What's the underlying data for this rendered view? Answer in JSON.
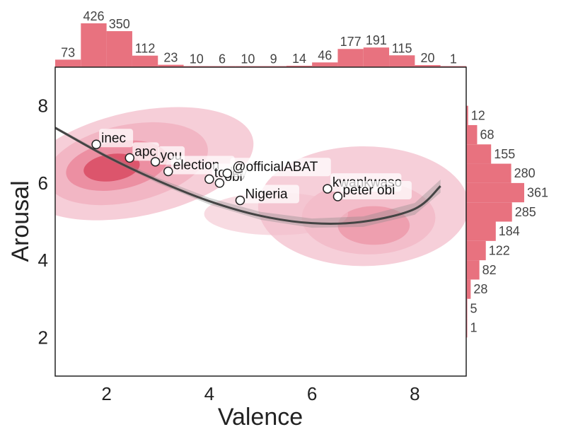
{
  "chart_data": {
    "type": "scatter",
    "xlabel": "Valence",
    "ylabel": "Arousal",
    "xlim": [
      1,
      9
    ],
    "ylim": [
      1,
      9
    ],
    "xticks": [
      "2",
      "4",
      "6",
      "8"
    ],
    "yticks": [
      "2",
      "4",
      "6",
      "8"
    ],
    "points": [
      {
        "label": "inec",
        "x": 1.8,
        "y": 7.0
      },
      {
        "label": "apc",
        "x": 2.45,
        "y": 6.65
      },
      {
        "label": "you",
        "x": 2.95,
        "y": 6.55
      },
      {
        "label": "election",
        "x": 3.2,
        "y": 6.3
      },
      {
        "label": "today",
        "x": 4.0,
        "y": 6.1
      },
      {
        "label": "obi",
        "x": 4.2,
        "y": 6.0
      },
      {
        "label": "@officialABAT",
        "x": 4.35,
        "y": 6.25
      },
      {
        "label": "Nigeria",
        "x": 4.6,
        "y": 5.55
      },
      {
        "label": "kwankwaso",
        "x": 6.3,
        "y": 5.85
      },
      {
        "label": "peter obi",
        "x": 6.5,
        "y": 5.65
      }
    ],
    "trend": [
      {
        "x": 1.0,
        "y": 7.43
      },
      {
        "x": 2.0,
        "y": 6.69
      },
      {
        "x": 3.0,
        "y": 6.06
      },
      {
        "x": 4.0,
        "y": 5.53
      },
      {
        "x": 5.0,
        "y": 5.15
      },
      {
        "x": 6.0,
        "y": 4.96
      },
      {
        "x": 7.0,
        "y": 5.0
      },
      {
        "x": 8.0,
        "y": 5.33
      },
      {
        "x": 8.5,
        "y": 5.92
      }
    ],
    "valence_histogram": {
      "bin_start": 1.0,
      "bin_width": 0.5,
      "counts": [
        73,
        426,
        350,
        112,
        23,
        10,
        6,
        10,
        9,
        14,
        46,
        177,
        191,
        115,
        20,
        1
      ]
    },
    "arousal_histogram": {
      "bin_start": 2.0,
      "bin_width": 0.5,
      "counts": [
        1,
        5,
        28,
        82,
        122,
        184,
        285,
        361,
        280,
        155,
        68,
        12
      ]
    },
    "colors": {
      "hist": "#e8727f",
      "kde_light": "#f3bdcb",
      "kde_dark": "#d63c55",
      "trend": "#444444",
      "axis": "#222222"
    }
  }
}
